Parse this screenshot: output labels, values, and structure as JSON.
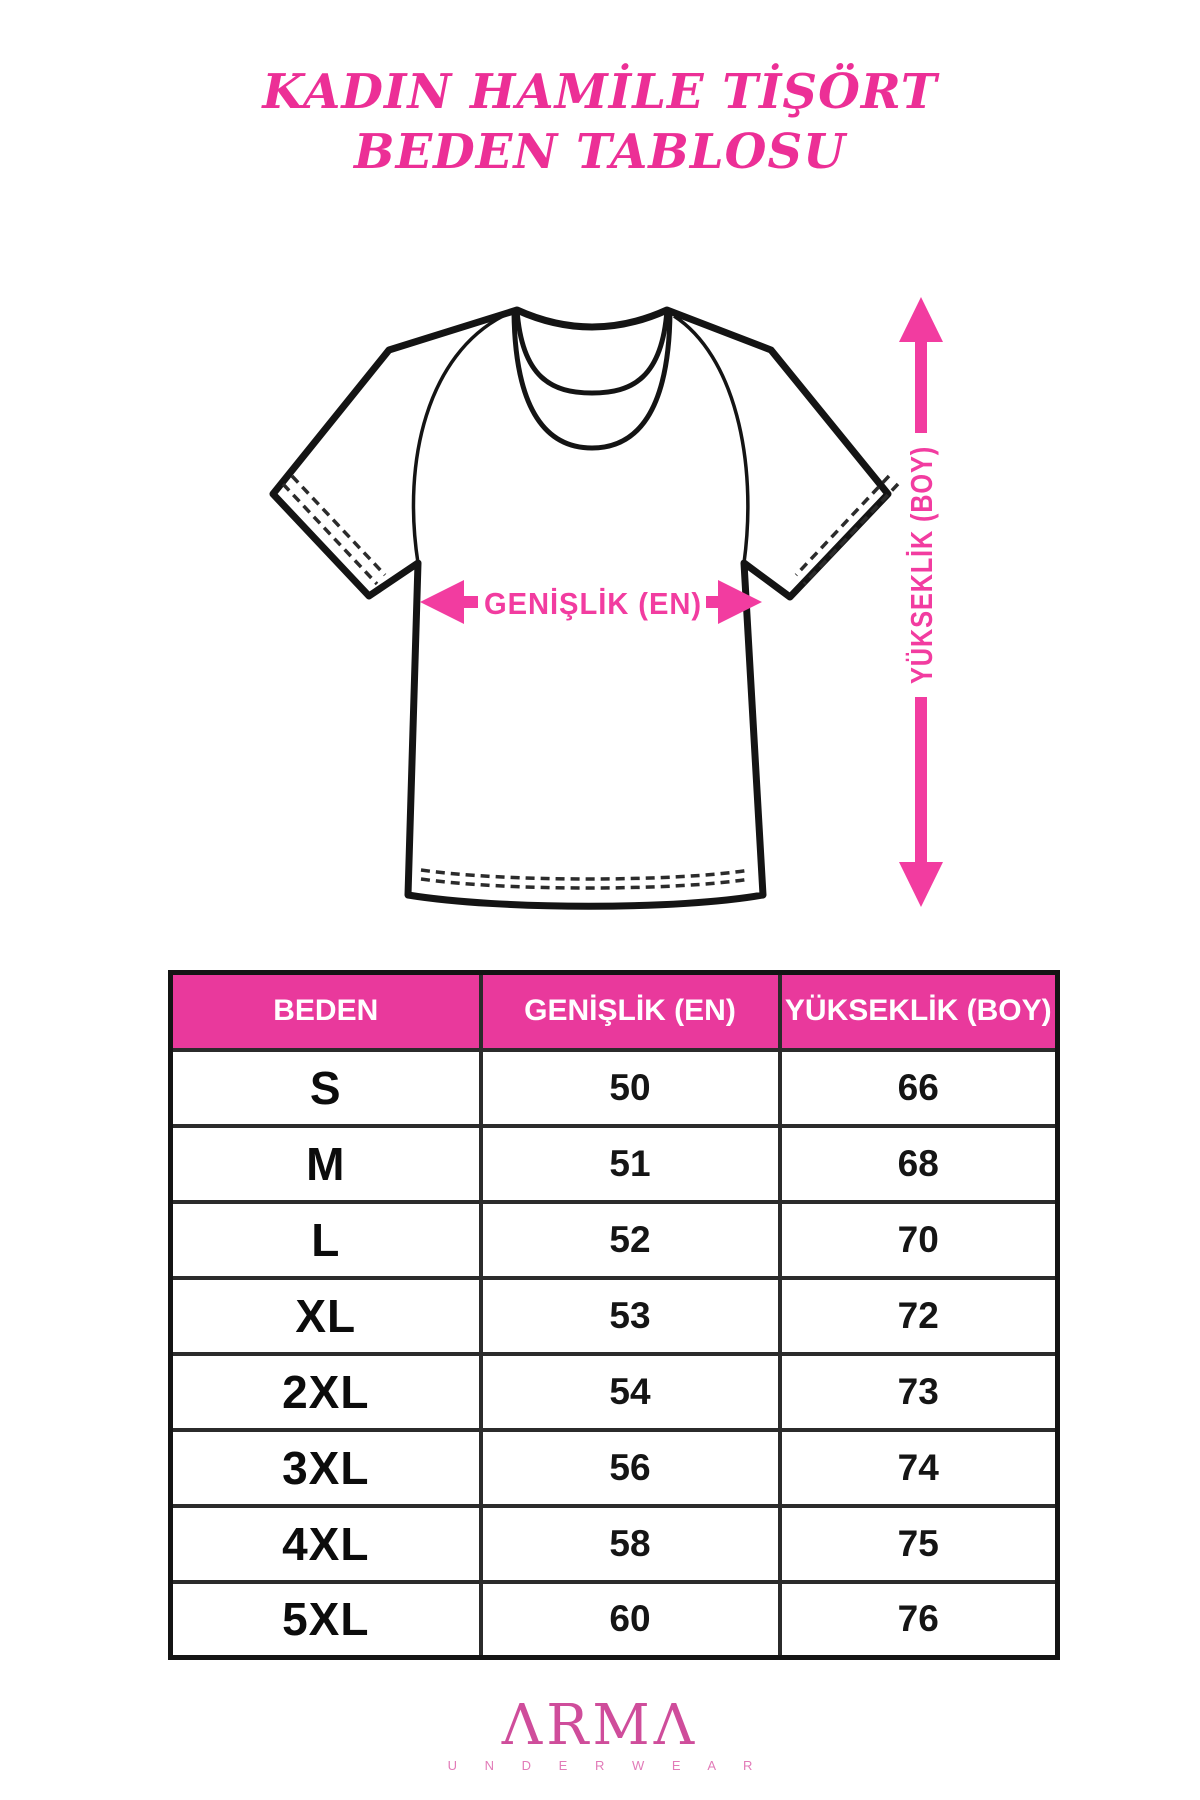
{
  "title": {
    "line1": "KADIN HAMİLE TİŞÖRT",
    "line2": "BEDEN TABLOSU"
  },
  "diagram": {
    "width_label": "GENİŞLİK (EN)",
    "height_label": "YÜKSEKLİK (BOY)"
  },
  "table": {
    "headers": [
      "BEDEN",
      "GENİŞLİK (EN)",
      "YÜKSEKLİK (BOY)"
    ],
    "rows": [
      [
        "S",
        "50",
        "66"
      ],
      [
        "M",
        "51",
        "68"
      ],
      [
        "L",
        "52",
        "70"
      ],
      [
        "XL",
        "53",
        "72"
      ],
      [
        "2XL",
        "54",
        "73"
      ],
      [
        "3XL",
        "56",
        "74"
      ],
      [
        "4XL",
        "58",
        "75"
      ],
      [
        "5XL",
        "60",
        "76"
      ]
    ]
  },
  "footer": {
    "brand": "ARMA",
    "brand_display": "ΛRMΛ",
    "tagline": "UNDERWEAR",
    "tagline_display": "U N D E R W E A R"
  },
  "colors": {
    "pink_title": "#EC2F96",
    "pink_accent": "#F23CA0",
    "pink_header": "#E9399C",
    "logo_pink": "#CF4D9B",
    "logo_pink_light": "#E27BB8",
    "ink": "#141414"
  }
}
